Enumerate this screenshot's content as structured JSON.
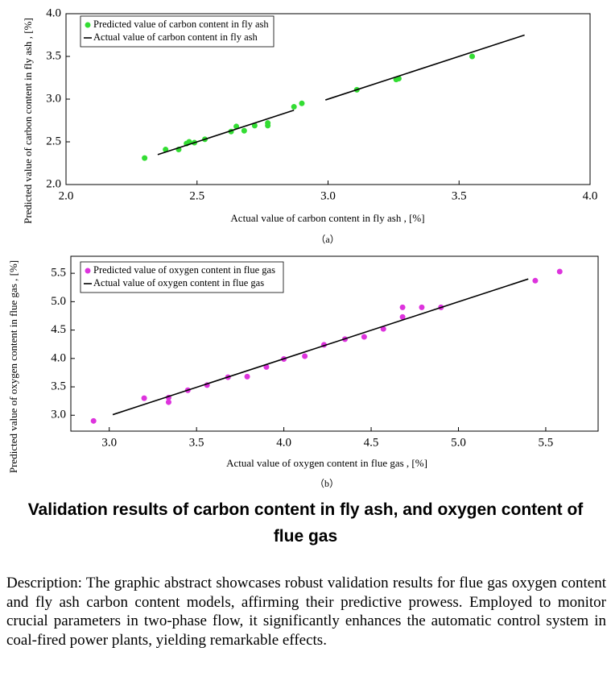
{
  "chart_data": [
    {
      "type": "scatter",
      "xlabel": "Actual value of carbon content in fly ash , [%]",
      "ylabel": "Predicted value of carbon content in fly ash , [%]",
      "panel_label": "（a）",
      "xlim": [
        2.0,
        4.0
      ],
      "ylim": [
        2.0,
        4.0
      ],
      "xticks": [
        {
          "value": 2,
          "label": "2.0"
        },
        2.5,
        {
          "value": 3,
          "label": "3.0"
        },
        3.5,
        {
          "value": 4,
          "label": "4.0"
        }
      ],
      "yticks": [
        {
          "value": 2,
          "label": "2.0"
        },
        2.5,
        {
          "value": 3,
          "label": "3.0"
        },
        3.5,
        {
          "value": 4,
          "label": "4.0"
        }
      ],
      "legend": "upper left",
      "series": [
        {
          "name": "Predicted value of carbon content in fly ash",
          "type": "scatter",
          "color": "#33dd33",
          "x": [
            2.3,
            2.38,
            2.43,
            2.46,
            2.47,
            2.49,
            2.53,
            2.63,
            2.65,
            2.68,
            2.72,
            2.77,
            2.77,
            2.87,
            2.9,
            3.11,
            3.26,
            3.27,
            3.55
          ],
          "values": [
            2.31,
            2.41,
            2.41,
            2.48,
            2.5,
            2.49,
            2.53,
            2.62,
            2.68,
            2.63,
            2.69,
            2.72,
            2.69,
            2.91,
            2.95,
            3.11,
            3.23,
            3.24,
            3.5
          ]
        },
        {
          "name": "Actual value of carbon content in fly ash",
          "type": "line",
          "color": "#000000",
          "x": [
            2.35,
            2.87,
            null,
            2.99,
            3.75
          ],
          "values": [
            2.35,
            2.87,
            null,
            2.99,
            3.75
          ]
        }
      ]
    },
    {
      "type": "scatter",
      "xlabel": "Actual value of oxygen content in flue gas , [%]",
      "ylabel": "Predicted value of oxygen content in flue gas , [%]",
      "panel_label": "（b）",
      "xlim": [
        2.78,
        5.8
      ],
      "ylim": [
        2.72,
        5.8
      ],
      "xticks": [
        {
          "value": 3,
          "label": "3.0"
        },
        3.5,
        {
          "value": 4,
          "label": "4.0"
        },
        4.5,
        {
          "value": 5,
          "label": "5.0"
        },
        5.5
      ],
      "yticks": [
        {
          "value": 3,
          "label": "3.0"
        },
        3.5,
        {
          "value": 4,
          "label": "4.0"
        },
        4.5,
        {
          "value": 5,
          "label": "5.0"
        },
        5.5
      ],
      "legend": "upper left",
      "series": [
        {
          "name": "Predicted value of oxygen content in flue gas",
          "type": "scatter",
          "color": "#dd33dd",
          "x": [
            2.91,
            3.2,
            3.34,
            3.34,
            3.45,
            3.56,
            3.68,
            3.79,
            3.9,
            4.0,
            4.12,
            4.23,
            4.35,
            4.46,
            4.57,
            4.68,
            4.68,
            4.79,
            4.9,
            5.44,
            5.58
          ],
          "values": [
            2.9,
            3.3,
            3.31,
            3.23,
            3.44,
            3.53,
            3.67,
            3.68,
            3.85,
            3.99,
            4.04,
            4.24,
            4.34,
            4.38,
            4.52,
            4.9,
            4.73,
            4.9,
            4.9,
            5.37,
            5.53
          ]
        },
        {
          "name": "Actual value of oxygen content in flue gas",
          "type": "line",
          "color": "#000000",
          "x": [
            3.02,
            5.4
          ],
          "values": [
            3.01,
            5.4
          ]
        }
      ]
    }
  ],
  "title": "Validation results of carbon content in fly ash, and oxygen content of flue gas",
  "description": "Description: The graphic abstract showcases robust validation results for flue gas oxygen content and fly ash carbon content models, affirming their predictive prowess. Employed to monitor crucial parameters in two-phase flow, it significantly enhances the automatic control system in coal-fired power plants, yielding remarkable effects."
}
